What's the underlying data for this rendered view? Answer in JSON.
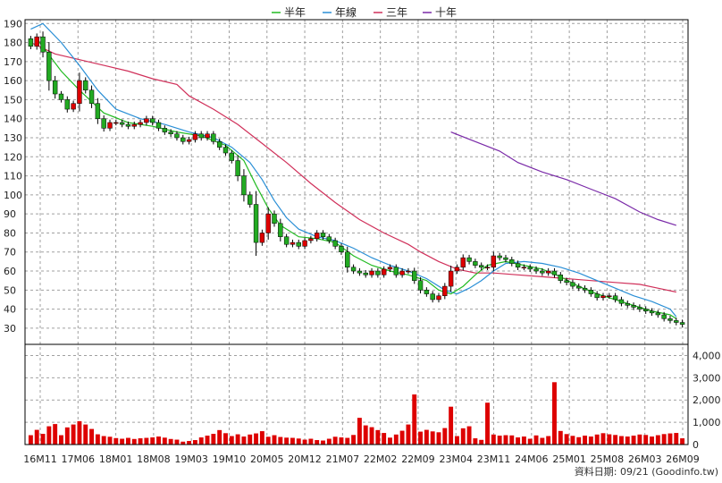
{
  "chart_data": {
    "type": "candlestick",
    "legend": [
      {
        "name": "半年",
        "color": "#22bb22"
      },
      {
        "name": "年線",
        "color": "#2a8fd6"
      },
      {
        "name": "三年",
        "color": "#d0305a"
      },
      {
        "name": "十年",
        "color": "#7a2aa8"
      }
    ],
    "price_axis": {
      "min": 30,
      "max": 190,
      "step": 10,
      "ticks": [
        "190",
        "180",
        "170",
        "160",
        "150",
        "140",
        "130",
        "120",
        "110",
        "100",
        "90",
        "80",
        "70",
        "60",
        "50",
        "40",
        "30"
      ]
    },
    "volume_axis": {
      "min": 0,
      "max": 4500,
      "ticks": [
        {
          "v": 4000,
          "label": "4,000"
        },
        {
          "v": 3000,
          "label": "3,000"
        },
        {
          "v": 2000,
          "label": "2,000"
        },
        {
          "v": 1000,
          "label": "1,000"
        },
        {
          "v": 0,
          "label": "0"
        }
      ]
    },
    "x_labels": [
      "16M11",
      "17M06",
      "18M01",
      "18M08",
      "19M03",
      "19M10",
      "20M05",
      "20M12",
      "21M07",
      "22M02",
      "22M09",
      "23M04",
      "23M11",
      "24M06",
      "25M01",
      "25M08",
      "26M03",
      "26M09"
    ],
    "grid": true,
    "colors": {
      "up": "#dd0000",
      "down": "#22aa22",
      "volume": "#dd0000",
      "grid": "#a0a0a0",
      "wick": "#000000"
    },
    "candles": {
      "close": [
        178,
        183,
        175,
        160,
        153,
        150,
        145,
        148,
        160,
        155,
        148,
        140,
        135,
        138,
        138,
        137,
        136,
        137,
        138,
        140,
        138,
        135,
        133,
        132,
        130,
        128,
        129,
        132,
        130,
        132,
        128,
        125,
        122,
        118,
        110,
        100,
        95,
        75,
        80,
        90,
        85,
        78,
        74,
        75,
        73,
        76,
        77,
        80,
        78,
        76,
        73,
        70,
        62,
        60,
        59,
        58,
        60,
        58,
        61,
        62,
        58,
        60,
        60,
        55,
        50,
        48,
        45,
        47,
        52,
        60,
        62,
        67,
        65,
        63,
        62,
        62,
        68,
        67,
        66,
        64,
        62,
        62,
        61,
        60,
        59,
        60,
        58,
        55,
        54,
        52,
        51,
        50,
        48,
        46,
        47,
        47,
        45,
        43,
        42,
        41,
        40,
        39,
        38,
        37,
        35,
        34,
        33,
        32
      ],
      "volume": [
        420,
        660,
        480,
        820,
        920,
        420,
        770,
        900,
        1050,
        900,
        700,
        460,
        380,
        350,
        290,
        260,
        300,
        250,
        280,
        300,
        320,
        360,
        310,
        250,
        220,
        130,
        160,
        200,
        320,
        400,
        480,
        650,
        510,
        380,
        460,
        360,
        450,
        500,
        600,
        350,
        420,
        340,
        310,
        300,
        270,
        220,
        260,
        200,
        180,
        260,
        350,
        320,
        300,
        430,
        1200,
        860,
        780,
        650,
        520,
        310,
        450,
        620,
        900,
        2250,
        580,
        660,
        590,
        550,
        740,
        1700,
        380,
        730,
        820,
        280,
        210,
        1880,
        450,
        400,
        420,
        410,
        320,
        360,
        260,
        410,
        300,
        380,
        2800,
        610,
        470,
        390,
        330,
        400,
        360,
        450,
        510,
        460,
        430,
        380,
        360,
        400,
        450,
        430,
        360,
        420,
        470,
        500,
        520,
        280
      ]
    },
    "ma_half": {
      "points": [
        [
          1,
          182
        ],
        [
          5,
          165
        ],
        [
          8,
          155
        ],
        [
          12,
          143
        ],
        [
          16,
          138
        ],
        [
          20,
          136
        ],
        [
          24,
          133
        ],
        [
          28,
          131
        ],
        [
          32,
          126
        ],
        [
          35,
          118
        ],
        [
          37,
          105
        ],
        [
          39,
          93
        ],
        [
          41,
          84
        ],
        [
          44,
          78
        ],
        [
          47,
          77
        ],
        [
          50,
          75
        ],
        [
          53,
          68
        ],
        [
          56,
          63
        ],
        [
          59,
          60
        ],
        [
          62,
          58
        ],
        [
          65,
          55
        ],
        [
          67,
          50
        ],
        [
          69,
          48
        ],
        [
          71,
          52
        ],
        [
          73,
          58
        ],
        [
          75,
          63
        ],
        [
          78,
          65
        ],
        [
          81,
          63
        ],
        [
          84,
          61
        ],
        [
          87,
          57
        ],
        [
          90,
          52
        ],
        [
          93,
          48
        ],
        [
          96,
          45
        ],
        [
          99,
          42
        ],
        [
          102,
          39
        ],
        [
          105,
          37
        ],
        [
          106,
          35
        ]
      ]
    },
    "ma_year": {
      "points": [
        [
          0,
          187
        ],
        [
          2,
          190
        ],
        [
          5,
          180
        ],
        [
          8,
          168
        ],
        [
          11,
          155
        ],
        [
          14,
          145
        ],
        [
          18,
          140
        ],
        [
          22,
          137
        ],
        [
          26,
          133
        ],
        [
          30,
          130
        ],
        [
          33,
          125
        ],
        [
          36,
          117
        ],
        [
          38,
          108
        ],
        [
          40,
          97
        ],
        [
          42,
          88
        ],
        [
          44,
          82
        ],
        [
          47,
          78
        ],
        [
          50,
          76
        ],
        [
          53,
          72
        ],
        [
          56,
          67
        ],
        [
          59,
          63
        ],
        [
          62,
          60
        ],
        [
          65,
          56
        ],
        [
          68,
          50
        ],
        [
          70,
          48
        ],
        [
          72,
          51
        ],
        [
          74,
          55
        ],
        [
          76,
          60
        ],
        [
          78,
          64
        ],
        [
          81,
          65
        ],
        [
          84,
          64
        ],
        [
          87,
          62
        ],
        [
          90,
          59
        ],
        [
          93,
          55
        ],
        [
          96,
          51
        ],
        [
          99,
          47
        ],
        [
          102,
          44
        ],
        [
          105,
          40
        ],
        [
          106,
          36
        ]
      ]
    },
    "ma_3y": {
      "points": [
        [
          0,
          180
        ],
        [
          4,
          174
        ],
        [
          8,
          171
        ],
        [
          12,
          168
        ],
        [
          16,
          165
        ],
        [
          20,
          161
        ],
        [
          24,
          158
        ],
        [
          26,
          152
        ],
        [
          30,
          145
        ],
        [
          34,
          137
        ],
        [
          38,
          127
        ],
        [
          42,
          117
        ],
        [
          46,
          106
        ],
        [
          50,
          96
        ],
        [
          54,
          87
        ],
        [
          58,
          80
        ],
        [
          62,
          74
        ],
        [
          64,
          70
        ],
        [
          67,
          65
        ],
        [
          70,
          61
        ],
        [
          73,
          59
        ],
        [
          76,
          59
        ],
        [
          80,
          58
        ],
        [
          84,
          57
        ],
        [
          88,
          56
        ],
        [
          92,
          55
        ],
        [
          96,
          54
        ],
        [
          100,
          53
        ],
        [
          103,
          51
        ],
        [
          106,
          49
        ]
      ]
    },
    "ma_10y": {
      "points": [
        [
          69,
          133
        ],
        [
          73,
          128
        ],
        [
          77,
          123
        ],
        [
          80,
          117
        ],
        [
          84,
          112
        ],
        [
          88,
          108
        ],
        [
          92,
          103
        ],
        [
          96,
          98
        ],
        [
          100,
          91
        ],
        [
          103,
          87
        ],
        [
          106,
          84
        ]
      ]
    },
    "footer": "資料日期: 09/21  (Goodinfo.tw)"
  }
}
